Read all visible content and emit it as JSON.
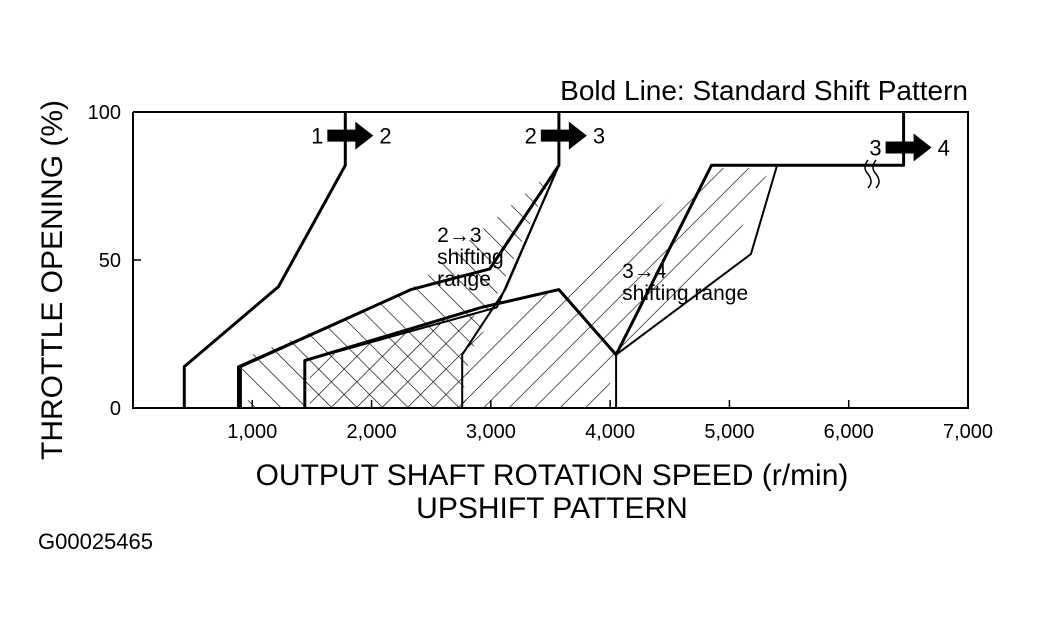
{
  "chart_data": {
    "type": "line",
    "title": "Bold Line: Standard Shift Pattern",
    "xlabel": "OUTPUT SHAFT ROTATION SPEED (r/min)",
    "subtitle": "UPSHIFT PATTERN",
    "ylabel": "THROTTLE OPENING (%)",
    "xlim": [
      0,
      7000
    ],
    "ylim": [
      0,
      100
    ],
    "x_ticks": [
      {
        "value": 1000,
        "label": "1,000"
      },
      {
        "value": 2000,
        "label": "2,000"
      },
      {
        "value": 3000,
        "label": "3,000"
      },
      {
        "value": 4000,
        "label": "4,000"
      },
      {
        "value": 5000,
        "label": "5,000"
      },
      {
        "value": 6000,
        "label": "6,000"
      },
      {
        "value": 7000,
        "label": "7,000"
      }
    ],
    "y_ticks": [
      {
        "value": 0,
        "label": "0"
      },
      {
        "value": 50,
        "label": "50"
      },
      {
        "value": 100,
        "label": "100"
      }
    ],
    "grid": false,
    "series": [
      {
        "x": [
          430,
          430,
          1220,
          1780,
          1780
        ],
        "y": [
          0,
          14,
          41,
          82,
          100
        ]
      },
      {
        "x": [
          900,
          900,
          1780,
          2330,
          2990,
          3570,
          3570
        ],
        "y": [
          0,
          14,
          30,
          40,
          47,
          82,
          100
        ]
      },
      {
        "x": [
          880,
          880,
          2330
        ],
        "y": [
          0,
          14,
          40
        ]
      },
      {
        "x": [
          1440,
          1440,
          3050,
          3570
        ],
        "y": [
          0,
          16,
          34,
          82
        ]
      },
      {
        "x": [
          2760,
          2760,
          3120,
          3570
        ],
        "y": [
          0,
          18,
          40,
          82
        ]
      },
      {
        "x": [
          1440,
          1440,
          2920,
          3570,
          4050,
          4050,
          4850,
          6400,
          6460,
          6460
        ],
        "y": [
          0,
          16,
          34,
          40,
          18,
          18,
          82,
          82,
          82,
          100
        ]
      },
      {
        "x": [
          4050,
          4050,
          5180,
          5400
        ],
        "y": [
          0,
          18,
          52,
          82
        ]
      }
    ],
    "shift_labels": [
      {
        "from": "1",
        "to": "2",
        "x": 1780,
        "y": 92
      },
      {
        "from": "2",
        "to": "3",
        "x": 3570,
        "y": 92
      },
      {
        "from": "3",
        "to": "4",
        "x": 6460,
        "y": 88
      }
    ],
    "annotations": [
      {
        "lines": [
          "2→3",
          "shifting",
          "range"
        ],
        "x": 2550,
        "y": 56
      },
      {
        "lines": [
          "3→4",
          "shifting range"
        ],
        "x": 4100,
        "y": 44
      }
    ],
    "figure_id": "G00025465"
  }
}
